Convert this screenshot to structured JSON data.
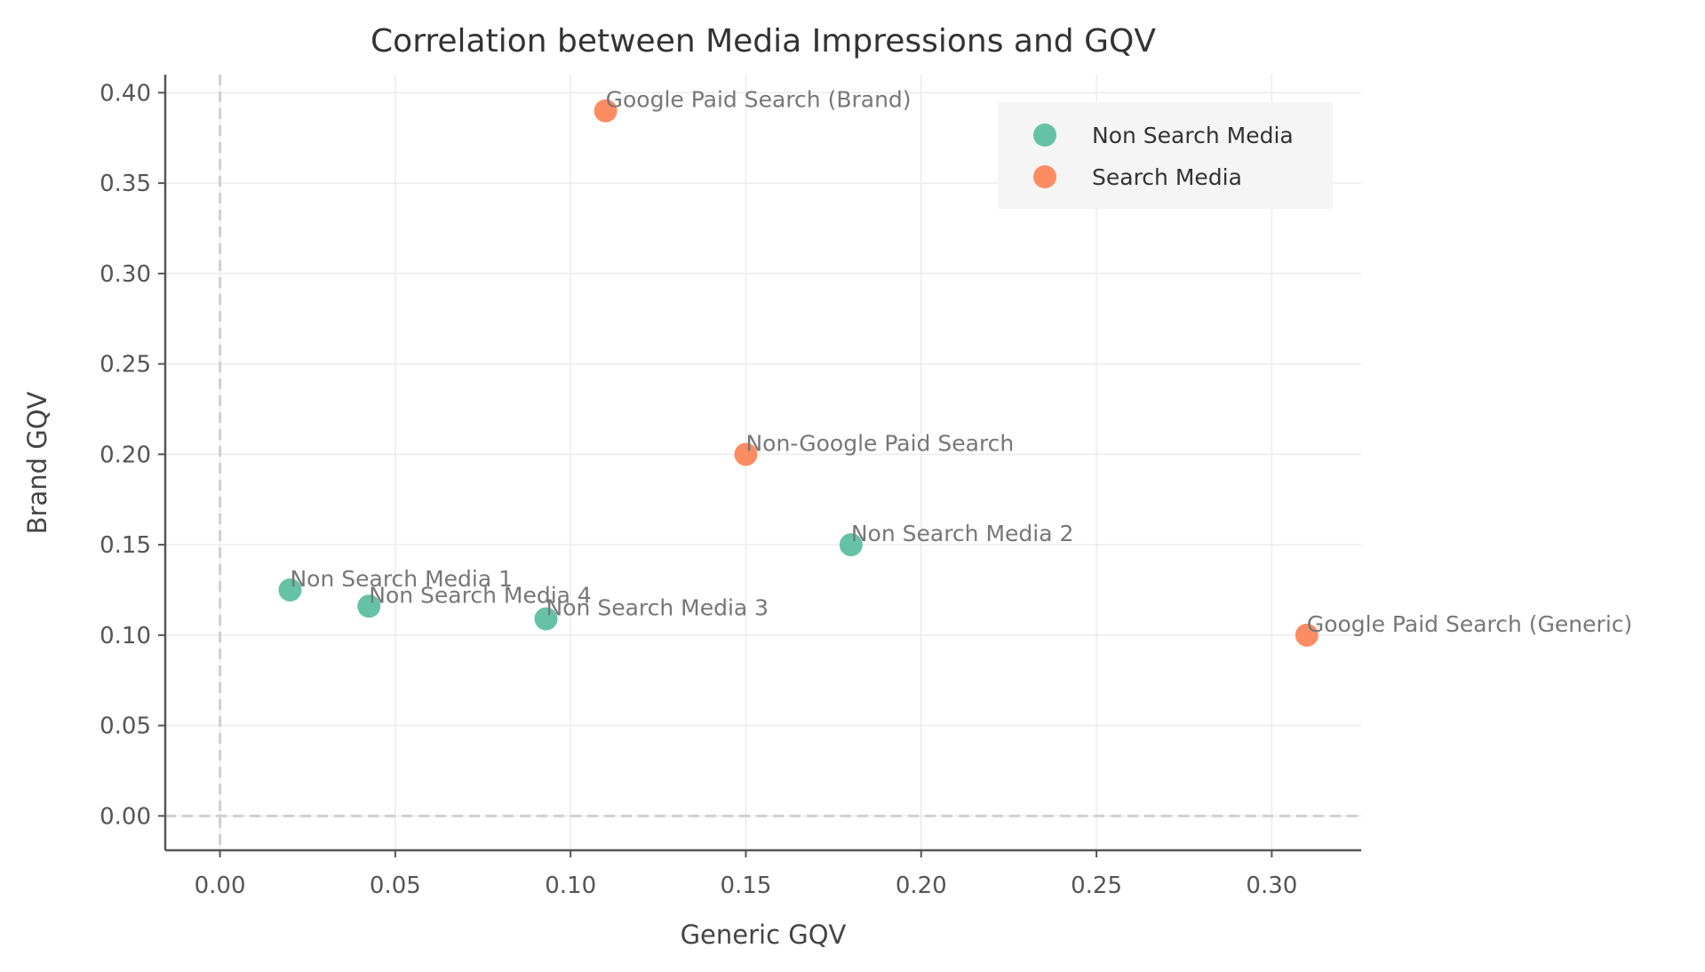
{
  "chart_data": {
    "type": "scatter",
    "title": "Correlation between Media Impressions and GQV",
    "xlabel": "Generic GQV",
    "ylabel": "Brand GQV",
    "xlim": [
      -0.0156,
      0.3255
    ],
    "ylim": [
      -0.019,
      0.41
    ],
    "xticks": [
      "0.00",
      "0.05",
      "0.10",
      "0.15",
      "0.20",
      "0.25",
      "0.30"
    ],
    "yticks": [
      "0.00",
      "0.05",
      "0.10",
      "0.15",
      "0.20",
      "0.25",
      "0.30",
      "0.35",
      "0.40"
    ],
    "grid": true,
    "reference_lines": {
      "x": 0,
      "y": 0,
      "style": "dashed"
    },
    "legend_position": "top-right",
    "series": [
      {
        "name": "Non Search Media",
        "color": "#66c2a5",
        "points": [
          {
            "label": "Non Search Media 1",
            "x": 0.02,
            "y": 0.125
          },
          {
            "label": "Non Search Media 4",
            "x": 0.0425,
            "y": 0.116
          },
          {
            "label": "Non Search Media 3",
            "x": 0.093,
            "y": 0.109
          },
          {
            "label": "Non Search Media 2",
            "x": 0.18,
            "y": 0.15
          }
        ]
      },
      {
        "name": "Search Media",
        "color": "#fc8d62",
        "points": [
          {
            "label": "Google Paid Search (Brand)",
            "x": 0.11,
            "y": 0.39
          },
          {
            "label": "Non-Google Paid Search",
            "x": 0.15,
            "y": 0.2
          },
          {
            "label": "Google Paid Search (Generic)",
            "x": 0.31,
            "y": 0.1
          }
        ]
      }
    ]
  }
}
